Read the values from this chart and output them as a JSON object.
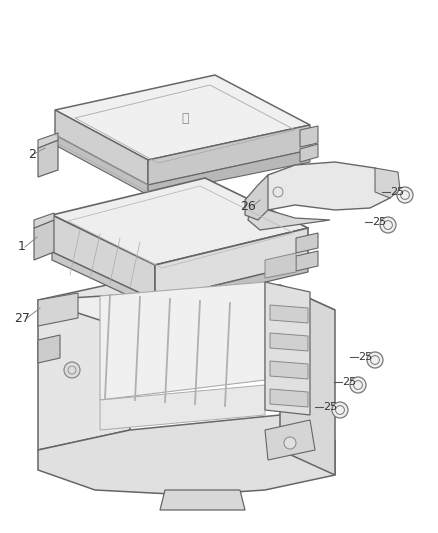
{
  "background_color": "#ffffff",
  "line_color": "#999999",
  "dark_line_color": "#666666",
  "label_color": "#333333",
  "fig_width": 4.38,
  "fig_height": 5.33,
  "dpi": 100,
  "part2_label": "2",
  "part1_label": "1",
  "part27_label": "27",
  "part26_label": "26",
  "part25_label": "25",
  "cover_fill": "#f2f2f2",
  "cover_side_fill": "#d8d8d8",
  "body_top_fill": "#eeeeee",
  "body_side_fill": "#d5d5d5",
  "base_fill": "#e8e8e8",
  "bracket_fill": "#e0e0e0"
}
